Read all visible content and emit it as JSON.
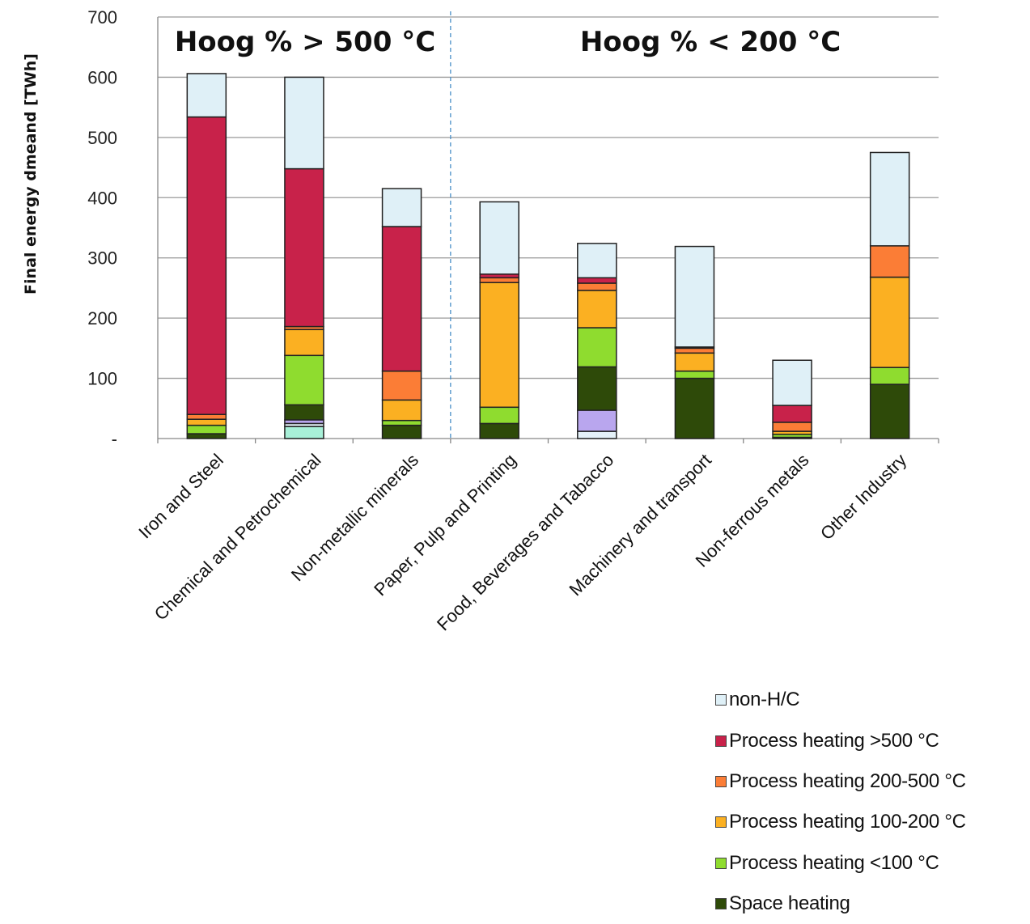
{
  "chart_data": {
    "type": "bar",
    "stacked": true,
    "xlabel": "",
    "ylabel": "Final energy dmeand [TWh]",
    "ylim": [
      0,
      700
    ],
    "yticks": [
      0,
      100,
      200,
      300,
      400,
      500,
      600,
      700
    ],
    "ytick_labels": [
      "-",
      "100",
      "200",
      "300",
      "400",
      "500",
      "600",
      "700"
    ],
    "grid": true,
    "legend_position": "bottom-right",
    "categories": [
      "Iron and Steel",
      "Chemical and Petrochemical",
      "Non-metallic minerals",
      "Paper, Pulp and Printing",
      "Food, Beverages and Tabacco",
      "Machinery and transport",
      "Non-ferrous metals",
      "Other Industry"
    ],
    "annotations": [
      "Hoog % > 500 °C",
      "Hoog % < 200 °C"
    ],
    "series": [
      {
        "name": "",
        "color": "#a8f0d8",
        "values": [
          0,
          20,
          0,
          0,
          0,
          0,
          0,
          0
        ]
      },
      {
        "name": "",
        "color": "#e4f1f8",
        "values": [
          0,
          5,
          0,
          0,
          12,
          0,
          0,
          0
        ]
      },
      {
        "name": "",
        "color": "#b9a6ee",
        "values": [
          0,
          6,
          0,
          0,
          35,
          0,
          0,
          0
        ]
      },
      {
        "name": "Space heating",
        "color": "#2e4a09",
        "values": [
          8,
          25,
          22,
          25,
          72,
          100,
          2,
          90
        ]
      },
      {
        "name": "Process heating <100 °C",
        "color": "#8fdc2f",
        "values": [
          14,
          82,
          8,
          27,
          65,
          12,
          5,
          28
        ]
      },
      {
        "name": "Process heating 100-200 °C",
        "color": "#fbb022",
        "values": [
          10,
          43,
          34,
          207,
          62,
          30,
          5,
          150
        ]
      },
      {
        "name": "Process heating 200-500 °C",
        "color": "#fb7d36",
        "values": [
          8,
          5,
          48,
          8,
          12,
          8,
          15,
          52
        ]
      },
      {
        "name": "Process heating >500 °C",
        "color": "#c8224a",
        "values": [
          494,
          262,
          240,
          6,
          9,
          2,
          28,
          0
        ]
      },
      {
        "name": "non-H/C",
        "color": "#dff0f7",
        "values": [
          72,
          152,
          63,
          120,
          57,
          167,
          75,
          155
        ]
      }
    ],
    "legend": [
      {
        "label": "non-H/C",
        "color": "#dff0f7"
      },
      {
        "label": "Process heating >500 °C",
        "color": "#c8224a"
      },
      {
        "label": "Process heating 200-500 °C",
        "color": "#fb7d36"
      },
      {
        "label": "Process heating 100-200 °C",
        "color": "#fbb022"
      },
      {
        "label": "Process heating <100 °C",
        "color": "#8fdc2f"
      },
      {
        "label": "Space heating",
        "color": "#2e4a09"
      }
    ]
  }
}
